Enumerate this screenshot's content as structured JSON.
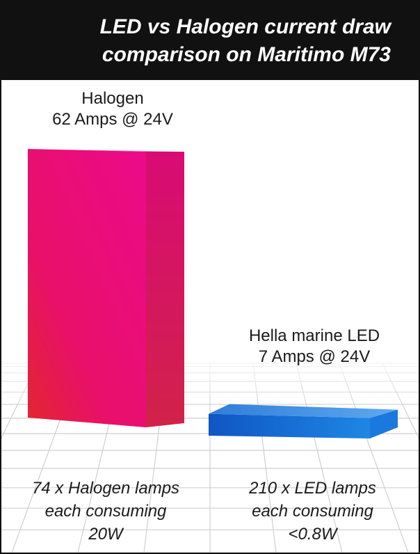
{
  "title": {
    "line1": "LED vs Halogen current draw",
    "line2": "comparison on Maritimo M73"
  },
  "chart_data": {
    "type": "bar",
    "unit": "Amps",
    "categories": [
      "Halogen",
      "Hella marine LED"
    ],
    "values": [
      62,
      7
    ],
    "colors": [
      "#e6087a",
      "#1a72d6"
    ],
    "bar_labels": [
      {
        "name": "Halogen",
        "value": "62 Amps @ 24V"
      },
      {
        "name": "Hella marine LED",
        "value": "7 Amps @ 24V"
      }
    ],
    "footnotes": [
      {
        "line1": "74 x Halogen lamps",
        "line2": "each consuming",
        "line3": "20W"
      },
      {
        "line1": "210 x LED lamps",
        "line2": "each consuming",
        "line3": "<0.8W"
      }
    ]
  }
}
